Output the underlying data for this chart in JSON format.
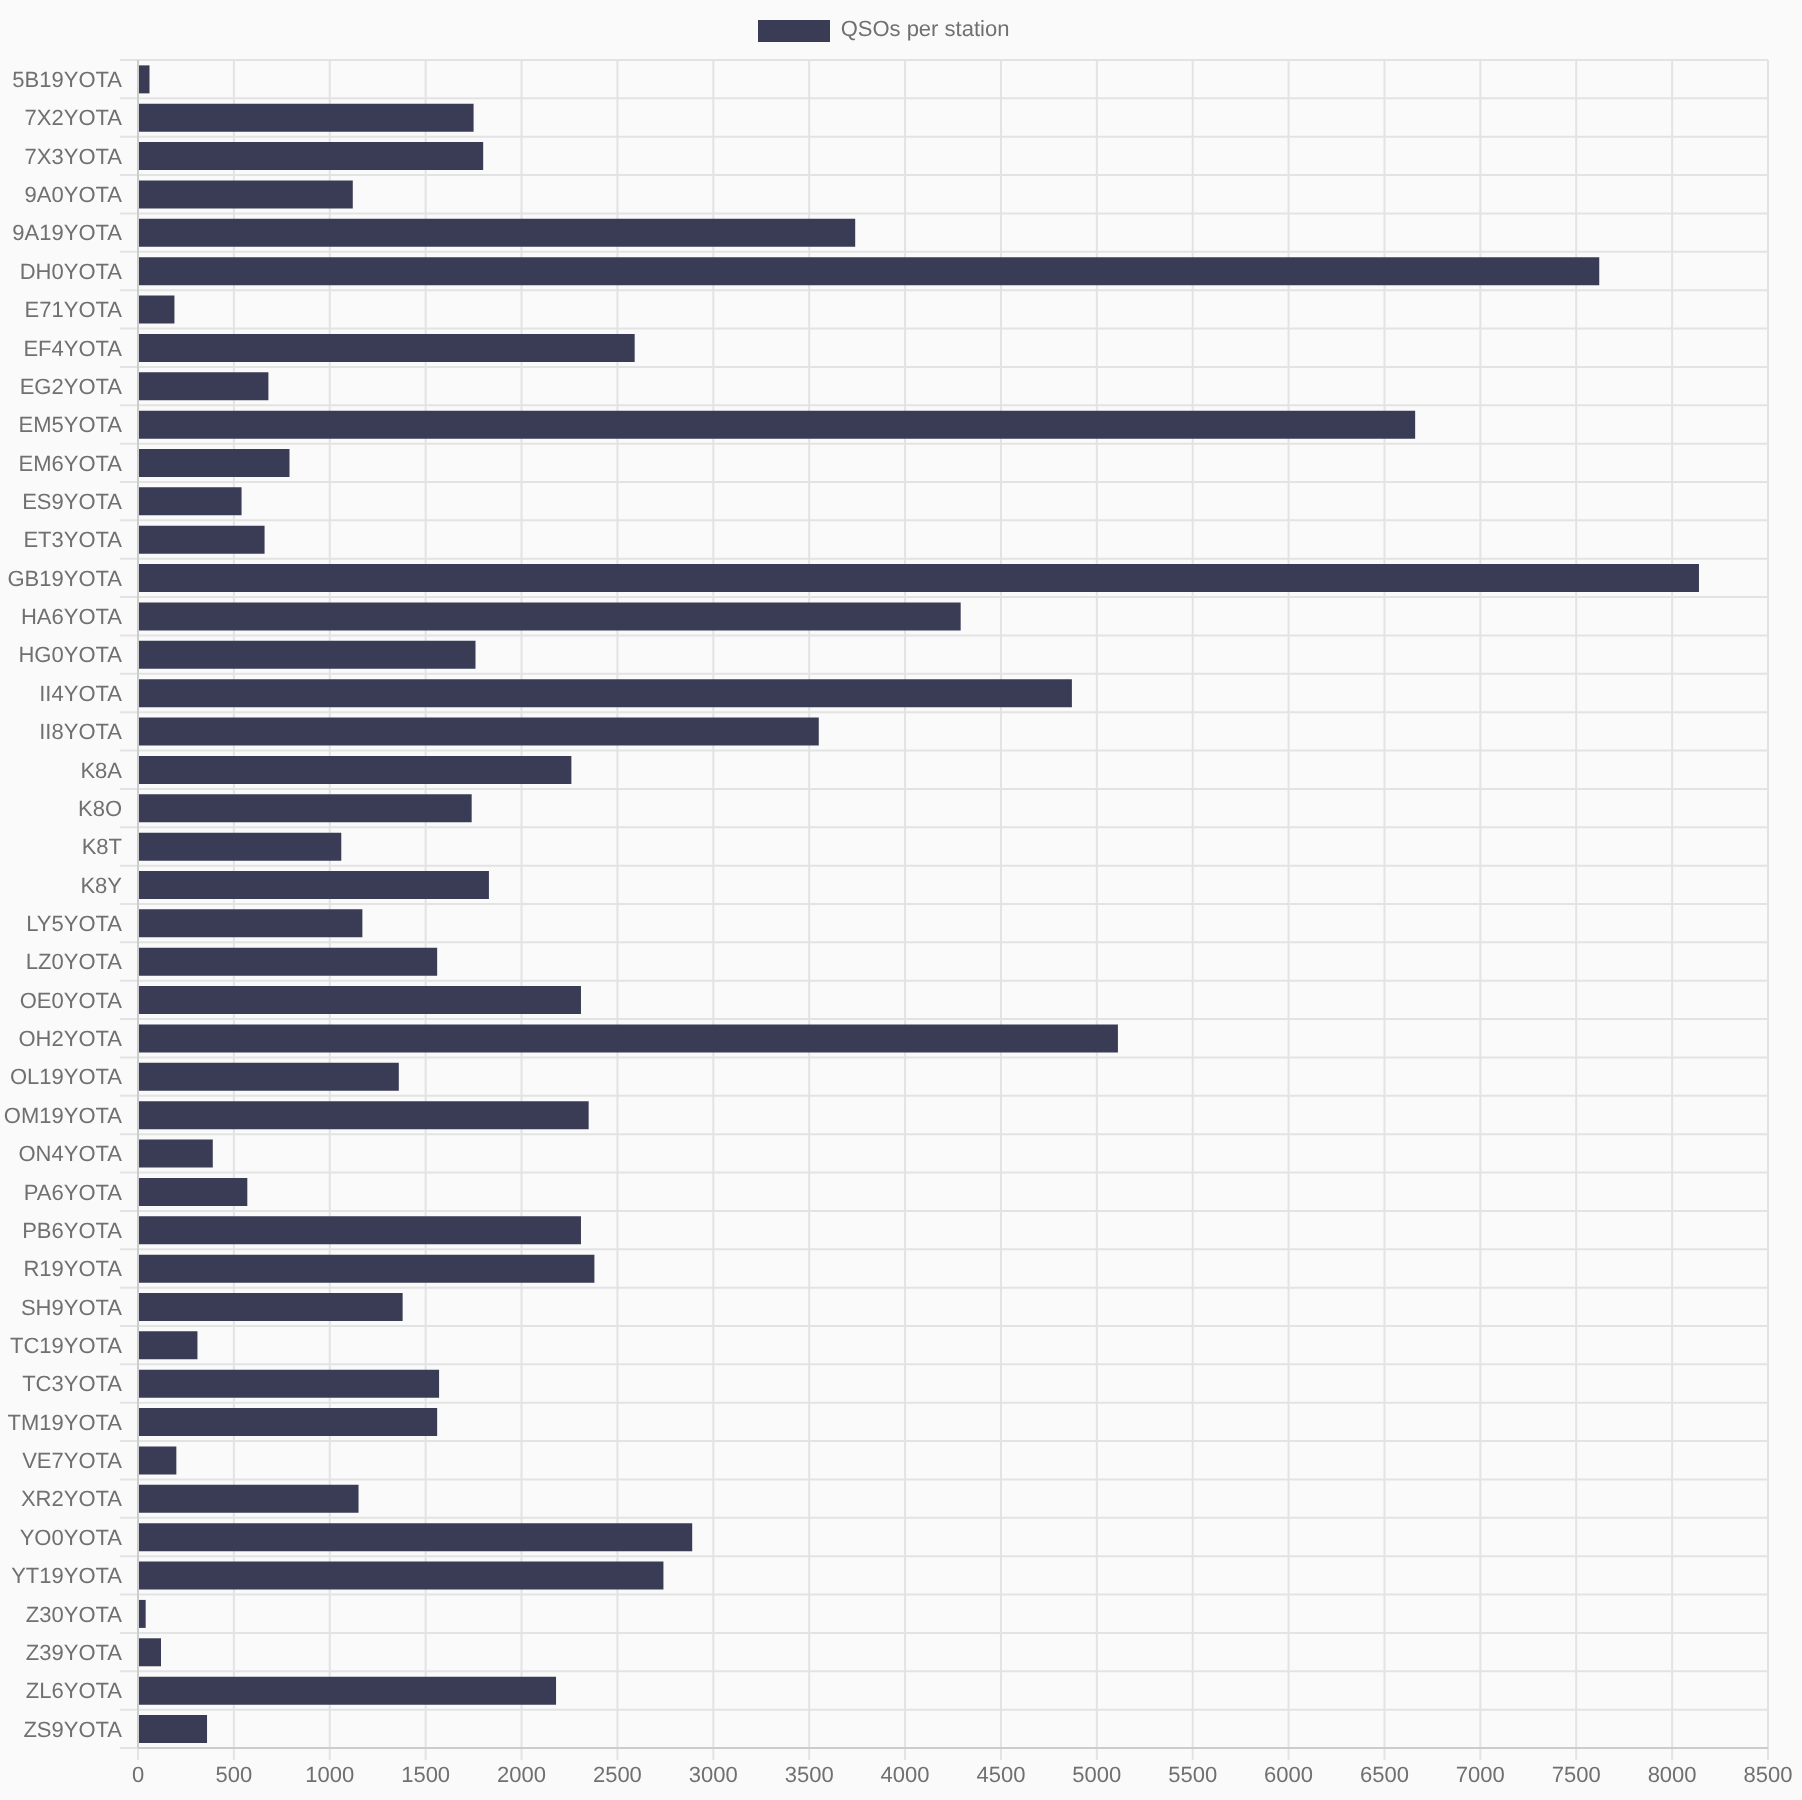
{
  "chart_data": {
    "type": "bar",
    "orientation": "horizontal",
    "categories": [
      "5B19YOTA",
      "7X2YOTA",
      "7X3YOTA",
      "9A0YOTA",
      "9A19YOTA",
      "DH0YOTA",
      "E71YOTA",
      "EF4YOTA",
      "EG2YOTA",
      "EM5YOTA",
      "EM6YOTA",
      "ES9YOTA",
      "ET3YOTA",
      "GB19YOTA",
      "HA6YOTA",
      "HG0YOTA",
      "II4YOTA",
      "II8YOTA",
      "K8A",
      "K8O",
      "K8T",
      "K8Y",
      "LY5YOTA",
      "LZ0YOTA",
      "OE0YOTA",
      "OH2YOTA",
      "OL19YOTA",
      "OM19YOTA",
      "ON4YOTA",
      "PA6YOTA",
      "PB6YOTA",
      "R19YOTA",
      "SH9YOTA",
      "TC19YOTA",
      "TC3YOTA",
      "TM19YOTA",
      "VE7YOTA",
      "XR2YOTA",
      "YO0YOTA",
      "YT19YOTA",
      "Z30YOTA",
      "Z39YOTA",
      "ZL6YOTA",
      "ZS9YOTA"
    ],
    "series": [
      {
        "name": "QSOs per station",
        "color": "#393c54",
        "values": [
          60,
          1750,
          1800,
          1120,
          3740,
          7620,
          190,
          2590,
          680,
          6660,
          790,
          540,
          660,
          8140,
          4290,
          1760,
          4870,
          3550,
          2260,
          1740,
          1060,
          1830,
          1170,
          1560,
          2310,
          5110,
          1360,
          2350,
          390,
          570,
          2310,
          2380,
          1380,
          310,
          1570,
          1560,
          200,
          1150,
          2890,
          2740,
          40,
          120,
          2180,
          360
        ]
      }
    ],
    "xlim": [
      0,
      8500
    ],
    "xticks": [
      0,
      500,
      1000,
      1500,
      2000,
      2500,
      3000,
      3500,
      4000,
      4500,
      5000,
      5500,
      6000,
      6500,
      7000,
      7500,
      8000,
      8500
    ],
    "grid": true,
    "legend": "top"
  }
}
